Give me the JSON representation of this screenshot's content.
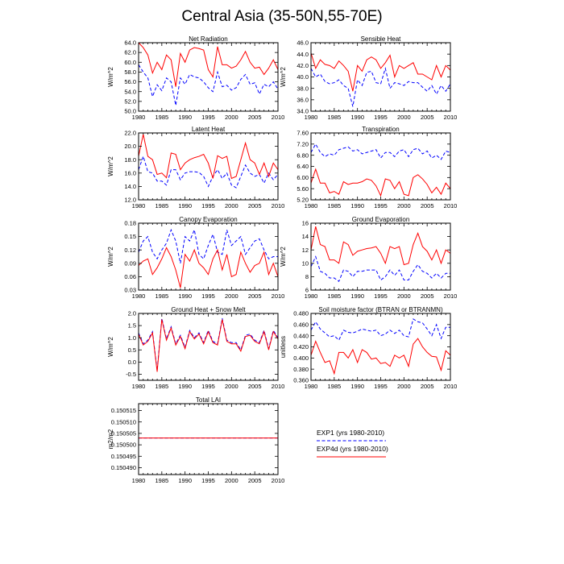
{
  "title": "Central Asia (35-50N,55-70E)",
  "legend": {
    "items": [
      {
        "label": "EXP1 (yrs 1980-2010)",
        "color": "#0000ff",
        "dash": true
      },
      {
        "label": "EXP4d (yrs 1980-2010)",
        "color": "#ff0000",
        "dash": false
      }
    ]
  },
  "chart_data": [
    {
      "type": "line",
      "title": "Net Radiation",
      "ylabel": "W/m^2",
      "xlim": [
        1980,
        2010
      ],
      "ylim": [
        50,
        64
      ],
      "yticks": [
        "50.0",
        "52.0",
        "54.0",
        "56.0",
        "58.0",
        "60.0",
        "62.0",
        "64.0"
      ],
      "xticks": [
        "1980",
        "1985",
        "1990",
        "1995",
        "2000",
        "2005",
        "2010"
      ],
      "x_start": 1980,
      "series": [
        {
          "name": "EXP1",
          "color": "#0000ff",
          "dash": true,
          "values": [
            59.5,
            58,
            56.8,
            53,
            55.4,
            54.2,
            56.8,
            56,
            51.2,
            56.8,
            55.5,
            57.5,
            57,
            56.8,
            56,
            54.8,
            54,
            58,
            55,
            55.3,
            54.3,
            54.8,
            56.5,
            57.5,
            55.5,
            55.8,
            53.5,
            55.5,
            55,
            56,
            54.5
          ]
        },
        {
          "name": "EXP4d",
          "color": "#ff0000",
          "dash": false,
          "values": [
            64,
            63,
            61.5,
            57.8,
            60,
            58.5,
            61.5,
            60.5,
            55,
            61.8,
            60,
            62.5,
            63,
            62.8,
            62.5,
            58.5,
            57,
            63.2,
            59.5,
            59.5,
            58.8,
            59.2,
            60.5,
            62.2,
            60,
            58.8,
            59,
            57.5,
            58.8,
            60.5,
            58.5
          ]
        }
      ]
    },
    {
      "type": "line",
      "title": "Sensible Heat",
      "ylabel": "W/m^2",
      "xlim": [
        1980,
        2010
      ],
      "ylim": [
        34,
        46
      ],
      "yticks": [
        "34.0",
        "36.0",
        "38.0",
        "40.0",
        "42.0",
        "44.0",
        "46.0"
      ],
      "xticks": [
        "1980",
        "1985",
        "1990",
        "1995",
        "2000",
        "2005",
        "2010"
      ],
      "x_start": 1980,
      "series": [
        {
          "name": "EXP1",
          "color": "#0000ff",
          "dash": true,
          "values": [
            41.5,
            40,
            40.5,
            39.2,
            38.8,
            39,
            39.5,
            38.5,
            38,
            34.8,
            39.5,
            38.5,
            40.8,
            41,
            39,
            38.8,
            41.5,
            38,
            39,
            38.8,
            38.5,
            39.2,
            39,
            39,
            38.2,
            37.5,
            38.5,
            37,
            38.5,
            37.5,
            38.8
          ]
        },
        {
          "name": "EXP4d",
          "color": "#ff0000",
          "dash": false,
          "values": [
            44.2,
            41.5,
            43,
            42.2,
            42,
            41.5,
            42.8,
            42,
            41,
            37.5,
            42,
            41,
            43,
            43.5,
            43,
            41.5,
            42.5,
            43.8,
            40,
            42,
            41.5,
            42,
            42.5,
            40.5,
            40.5,
            40,
            39.5,
            42,
            40,
            42,
            41.2
          ]
        }
      ]
    },
    {
      "type": "line",
      "title": "Latent Heat",
      "ylabel": "W/m^2",
      "xlim": [
        1980,
        2010
      ],
      "ylim": [
        12,
        22
      ],
      "yticks": [
        "12.0",
        "14.0",
        "16.0",
        "18.0",
        "20.0",
        "22.0"
      ],
      "xticks": [
        "1980",
        "1985",
        "1990",
        "1995",
        "2000",
        "2005",
        "2010"
      ],
      "x_start": 1980,
      "series": [
        {
          "name": "EXP1",
          "color": "#0000ff",
          "dash": true,
          "values": [
            16.5,
            18.5,
            16.2,
            16,
            14.8,
            14.8,
            14.2,
            16.5,
            16.5,
            15,
            16,
            16.2,
            16.2,
            16.1,
            15.5,
            14,
            15.5,
            16.5,
            15.2,
            16,
            14.2,
            13.8,
            15.5,
            17.2,
            16,
            15.5,
            15.8,
            14.5,
            16,
            15,
            15.8
          ]
        },
        {
          "name": "EXP4d",
          "color": "#ff0000",
          "dash": false,
          "values": [
            18.5,
            21.8,
            18.5,
            18,
            15.8,
            16,
            15.3,
            19,
            18.8,
            16.5,
            17.5,
            18,
            18.3,
            18.5,
            18.8,
            17.5,
            15.2,
            18.6,
            18.2,
            18.5,
            15.2,
            15.5,
            18,
            20.5,
            18,
            17.5,
            15.8,
            17.5,
            15.5,
            17.5,
            16.5
          ]
        }
      ]
    },
    {
      "type": "line",
      "title": "Transpiration",
      "ylabel": "",
      "xlim": [
        1980,
        2010
      ],
      "ylim": [
        5.2,
        7.6
      ],
      "yticks": [
        "5.20",
        "5.60",
        "6.00",
        "6.40",
        "6.80",
        "7.20",
        "7.60"
      ],
      "xticks": [
        "1980",
        "1985",
        "1990",
        "1995",
        "2000",
        "2005",
        "2010"
      ],
      "x_start": 1980,
      "series": [
        {
          "name": "EXP1",
          "color": "#0000ff",
          "dash": true,
          "values": [
            6.9,
            7.2,
            6.9,
            6.75,
            6.85,
            6.8,
            7,
            7.05,
            7.1,
            6.95,
            7,
            6.85,
            6.9,
            6.95,
            7,
            6.7,
            6.9,
            6.9,
            6.75,
            6.95,
            7,
            6.75,
            7,
            7.05,
            6.85,
            6.95,
            6.7,
            6.8,
            6.65,
            6.95,
            6.9
          ]
        },
        {
          "name": "EXP4d",
          "color": "#ff0000",
          "dash": false,
          "values": [
            5.8,
            6.3,
            5.8,
            5.8,
            5.45,
            5.5,
            5.4,
            5.85,
            5.75,
            5.8,
            5.8,
            5.85,
            5.95,
            5.9,
            5.7,
            5.35,
            5.95,
            5.9,
            5.6,
            5.85,
            5.4,
            5.35,
            6,
            6.1,
            5.95,
            5.75,
            5.45,
            5.65,
            5.4,
            5.8,
            5.6
          ]
        }
      ]
    },
    {
      "type": "line",
      "title": "Canopy Evaporation",
      "ylabel": "W/m^2",
      "xlim": [
        1980,
        2010
      ],
      "ylim": [
        0.03,
        0.18
      ],
      "yticks": [
        "0.03",
        "0.06",
        "0.09",
        "0.12",
        "0.15",
        "0.18"
      ],
      "xticks": [
        "1980",
        "1985",
        "1990",
        "1995",
        "2000",
        "2005",
        "2010"
      ],
      "x_start": 1980,
      "series": [
        {
          "name": "EXP1",
          "color": "#0000ff",
          "dash": true,
          "values": [
            0.115,
            0.14,
            0.15,
            0.115,
            0.1,
            0.12,
            0.135,
            0.165,
            0.14,
            0.09,
            0.15,
            0.14,
            0.165,
            0.11,
            0.1,
            0.13,
            0.155,
            0.115,
            0.11,
            0.165,
            0.13,
            0.14,
            0.15,
            0.11,
            0.125,
            0.14,
            0.145,
            0.12,
            0.1,
            0.105,
            0.105
          ]
        },
        {
          "name": "EXP4d",
          "color": "#ff0000",
          "dash": false,
          "values": [
            0.085,
            0.095,
            0.1,
            0.065,
            0.08,
            0.1,
            0.125,
            0.105,
            0.075,
            0.035,
            0.11,
            0.095,
            0.12,
            0.09,
            0.08,
            0.065,
            0.1,
            0.12,
            0.075,
            0.11,
            0.06,
            0.065,
            0.115,
            0.09,
            0.07,
            0.085,
            0.09,
            0.115,
            0.065,
            0.09,
            0.06
          ]
        }
      ]
    },
    {
      "type": "line",
      "title": "Ground Evaporation",
      "ylabel": "W/m^2",
      "xlim": [
        1980,
        2010
      ],
      "ylim": [
        6,
        16
      ],
      "yticks": [
        "6",
        "8",
        "10",
        "12",
        "14",
        "16"
      ],
      "xticks": [
        "1980",
        "1985",
        "1990",
        "1995",
        "2000",
        "2005",
        "2010"
      ],
      "x_start": 1980,
      "series": [
        {
          "name": "EXP1",
          "color": "#0000ff",
          "dash": true,
          "values": [
            9.5,
            11,
            8.8,
            8.5,
            7.8,
            7.8,
            7.3,
            9,
            8.8,
            8,
            8.8,
            8.8,
            9,
            9,
            9,
            7.5,
            8,
            9,
            8.2,
            9,
            7.5,
            7.5,
            8.8,
            9.8,
            8.8,
            8.5,
            7.8,
            8.5,
            7.8,
            8.5,
            8.5
          ]
        },
        {
          "name": "EXP4d",
          "color": "#ff0000",
          "dash": false,
          "values": [
            12,
            15.5,
            12.8,
            12.5,
            10.5,
            10.5,
            10,
            13.2,
            12.8,
            11.2,
            11.8,
            12,
            12.2,
            12.3,
            12.5,
            11.5,
            10,
            12.5,
            12.2,
            12.5,
            9.8,
            10,
            12.8,
            14.5,
            12.5,
            11.8,
            10.5,
            12,
            10,
            12,
            11.5
          ]
        }
      ]
    },
    {
      "type": "line",
      "title": "Ground Heat + Snow Melt",
      "ylabel": "W/m^2",
      "xlim": [
        1980,
        2010
      ],
      "ylim": [
        -0.75,
        2
      ],
      "yticks": [
        "-0.5",
        "0.0",
        "0.5",
        "1.0",
        "1.5",
        "2.0"
      ],
      "xticks": [
        "1980",
        "1985",
        "1990",
        "1995",
        "2000",
        "2005",
        "2010"
      ],
      "x_start": 1980,
      "series": [
        {
          "name": "EXP1",
          "color": "#0000ff",
          "dash": true,
          "values": [
            1.2,
            0.75,
            0.9,
            1.25,
            -0.35,
            1.8,
            0.95,
            1.45,
            0.75,
            1.1,
            0.6,
            1.3,
            1.0,
            1.2,
            0.8,
            1.3,
            0.85,
            0.75,
            1.8,
            0.9,
            0.8,
            0.8,
            0.5,
            1.1,
            1.15,
            0.9,
            0.8,
            1.3,
            0.55,
            1.3,
            1.0
          ]
        },
        {
          "name": "EXP4d",
          "color": "#ff0000",
          "dash": false,
          "values": [
            1.15,
            0.7,
            0.85,
            1.2,
            -0.4,
            1.75,
            0.9,
            1.4,
            0.7,
            1.05,
            0.55,
            1.25,
            0.95,
            1.15,
            0.75,
            1.25,
            0.8,
            0.7,
            1.75,
            0.85,
            0.75,
            0.75,
            0.45,
            1.05,
            1.1,
            0.85,
            0.75,
            1.25,
            0.5,
            1.25,
            0.95
          ]
        }
      ]
    },
    {
      "type": "line",
      "title": "Soil moisture factor (BTRAN or BTRANMN)",
      "ylabel": "unitless",
      "xlim": [
        1980,
        2010
      ],
      "ylim": [
        0.36,
        0.48
      ],
      "yticks": [
        "0.360",
        "0.380",
        "0.400",
        "0.420",
        "0.440",
        "0.460",
        "0.480"
      ],
      "xticks": [
        "1980",
        "1985",
        "1990",
        "1995",
        "2000",
        "2005",
        "2010"
      ],
      "x_start": 1980,
      "series": [
        {
          "name": "EXP1",
          "color": "#0000ff",
          "dash": true,
          "values": [
            0.45,
            0.465,
            0.452,
            0.445,
            0.438,
            0.44,
            0.432,
            0.45,
            0.446,
            0.445,
            0.448,
            0.452,
            0.45,
            0.448,
            0.45,
            0.44,
            0.443,
            0.45,
            0.444,
            0.45,
            0.44,
            0.438,
            0.47,
            0.465,
            0.463,
            0.452,
            0.44,
            0.46,
            0.435,
            0.455,
            0.455
          ]
        },
        {
          "name": "EXP4d",
          "color": "#ff0000",
          "dash": false,
          "values": [
            0.405,
            0.43,
            0.41,
            0.392,
            0.395,
            0.372,
            0.41,
            0.41,
            0.4,
            0.415,
            0.392,
            0.415,
            0.41,
            0.398,
            0.4,
            0.39,
            0.392,
            0.385,
            0.405,
            0.4,
            0.405,
            0.385,
            0.425,
            0.435,
            0.42,
            0.41,
            0.403,
            0.402,
            0.378,
            0.413,
            0.405
          ]
        }
      ]
    },
    {
      "type": "line",
      "title": "Total LAI",
      "ylabel": "m2/m2",
      "xlim": [
        1980,
        2010
      ],
      "ylim": [
        0.150487,
        0.150518
      ],
      "yticks": [
        "0.150490",
        "0.150495",
        "0.150500",
        "0.150505",
        "0.150510",
        "0.150515"
      ],
      "xticks": [
        "1980",
        "1985",
        "1990",
        "1995",
        "2000",
        "2005",
        "2010"
      ],
      "x_start": 1980,
      "series": [
        {
          "name": "EXP1",
          "color": "#0000ff",
          "dash": true,
          "values": [
            0.150503,
            0.150503,
            0.150503,
            0.150503,
            0.150503,
            0.150503,
            0.150503,
            0.150503,
            0.150503,
            0.150503,
            0.150503,
            0.150503,
            0.150503,
            0.150503,
            0.150503,
            0.150503,
            0.150503,
            0.150503,
            0.150503,
            0.150503,
            0.150503,
            0.150503,
            0.150503,
            0.150503,
            0.150503,
            0.150503,
            0.150503,
            0.150503,
            0.150503,
            0.150503,
            0.150503
          ]
        },
        {
          "name": "EXP4d",
          "color": "#ff0000",
          "dash": false,
          "values": [
            0.150503,
            0.150503,
            0.150503,
            0.150503,
            0.150503,
            0.150503,
            0.150503,
            0.150503,
            0.150503,
            0.150503,
            0.150503,
            0.150503,
            0.150503,
            0.150503,
            0.150503,
            0.150503,
            0.150503,
            0.150503,
            0.150503,
            0.150503,
            0.150503,
            0.150503,
            0.150503,
            0.150503,
            0.150503,
            0.150503,
            0.150503,
            0.150503,
            0.150503,
            0.150503,
            0.150503
          ]
        }
      ]
    }
  ]
}
